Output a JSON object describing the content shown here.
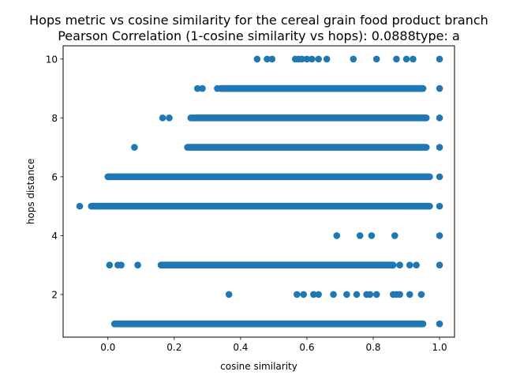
{
  "chart_data": {
    "type": "scatter",
    "title_line1": "Hops metric vs cosine similarity for the cereal grain food product branch",
    "title_line2": "Pearson Correlation (1-cosine similarity vs hops): 0.0888type: a",
    "xlabel": "cosine similarity",
    "ylabel": "hops distance",
    "xlim": [
      -0.135,
      1.045
    ],
    "ylim": [
      0.55,
      10.45
    ],
    "xticks": [
      0.0,
      0.2,
      0.4,
      0.6,
      0.8,
      1.0
    ],
    "xtick_labels": [
      "0.0",
      "0.2",
      "0.4",
      "0.6",
      "0.8",
      "1.0"
    ],
    "yticks": [
      2,
      4,
      6,
      8,
      10
    ],
    "ytick_labels": [
      "2",
      "4",
      "6",
      "8",
      "10"
    ],
    "grid": false,
    "marker_color": "#1f77b4",
    "dense_bands": [
      {
        "y": 1,
        "x_from": 0.02,
        "x_to": 0.95
      },
      {
        "y": 3,
        "x_from": 0.16,
        "x_to": 0.86
      },
      {
        "y": 5,
        "x_from": -0.05,
        "x_to": 0.97
      },
      {
        "y": 6,
        "x_from": 0.0,
        "x_to": 0.97
      },
      {
        "y": 7,
        "x_from": 0.24,
        "x_to": 0.96
      },
      {
        "y": 8,
        "x_from": 0.25,
        "x_to": 0.96
      },
      {
        "y": 9,
        "x_from": 0.34,
        "x_to": 0.95
      }
    ],
    "points": [
      {
        "x": -0.085,
        "y": 5
      },
      {
        "x": 1.0,
        "y": 1
      },
      {
        "x": 1.0,
        "y": 3
      },
      {
        "x": 1.0,
        "y": 4
      },
      {
        "x": 1.0,
        "y": 5
      },
      {
        "x": 1.0,
        "y": 6
      },
      {
        "x": 1.0,
        "y": 7
      },
      {
        "x": 1.0,
        "y": 8
      },
      {
        "x": 1.0,
        "y": 9
      },
      {
        "x": 1.0,
        "y": 10
      },
      {
        "x": 0.365,
        "y": 2
      },
      {
        "x": 0.57,
        "y": 2
      },
      {
        "x": 0.59,
        "y": 2
      },
      {
        "x": 0.62,
        "y": 2
      },
      {
        "x": 0.635,
        "y": 2
      },
      {
        "x": 0.68,
        "y": 2
      },
      {
        "x": 0.72,
        "y": 2
      },
      {
        "x": 0.75,
        "y": 2
      },
      {
        "x": 0.78,
        "y": 2
      },
      {
        "x": 0.79,
        "y": 2
      },
      {
        "x": 0.81,
        "y": 2
      },
      {
        "x": 0.86,
        "y": 2
      },
      {
        "x": 0.87,
        "y": 2
      },
      {
        "x": 0.88,
        "y": 2
      },
      {
        "x": 0.91,
        "y": 2
      },
      {
        "x": 0.945,
        "y": 2
      },
      {
        "x": 0.005,
        "y": 3
      },
      {
        "x": 0.03,
        "y": 3
      },
      {
        "x": 0.04,
        "y": 3
      },
      {
        "x": 0.09,
        "y": 3
      },
      {
        "x": 0.88,
        "y": 3
      },
      {
        "x": 0.91,
        "y": 3
      },
      {
        "x": 0.93,
        "y": 3
      },
      {
        "x": 0.69,
        "y": 4
      },
      {
        "x": 0.76,
        "y": 4
      },
      {
        "x": 0.795,
        "y": 4
      },
      {
        "x": 0.865,
        "y": 4
      },
      {
        "x": 0.08,
        "y": 7
      },
      {
        "x": 0.165,
        "y": 8
      },
      {
        "x": 0.185,
        "y": 8
      },
      {
        "x": 0.27,
        "y": 9
      },
      {
        "x": 0.285,
        "y": 9
      },
      {
        "x": 0.33,
        "y": 9
      },
      {
        "x": 0.45,
        "y": 10
      },
      {
        "x": 0.48,
        "y": 10
      },
      {
        "x": 0.495,
        "y": 10
      },
      {
        "x": 0.565,
        "y": 10
      },
      {
        "x": 0.575,
        "y": 10
      },
      {
        "x": 0.585,
        "y": 10
      },
      {
        "x": 0.6,
        "y": 10
      },
      {
        "x": 0.615,
        "y": 10
      },
      {
        "x": 0.635,
        "y": 10
      },
      {
        "x": 0.66,
        "y": 10
      },
      {
        "x": 0.74,
        "y": 10
      },
      {
        "x": 0.81,
        "y": 10
      },
      {
        "x": 0.87,
        "y": 10
      },
      {
        "x": 0.9,
        "y": 10
      },
      {
        "x": 0.92,
        "y": 10
      }
    ]
  }
}
